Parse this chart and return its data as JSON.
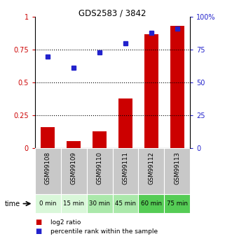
{
  "title": "GDS2583 / 3842",
  "samples": [
    "GSM99108",
    "GSM99109",
    "GSM99110",
    "GSM99111",
    "GSM99112",
    "GSM99113"
  ],
  "time_labels": [
    "0 min",
    "15 min",
    "30 min",
    "45 min",
    "60 min",
    "75 min"
  ],
  "log2_ratio": [
    0.16,
    0.055,
    0.13,
    0.38,
    0.87,
    0.93
  ],
  "percentile_rank": [
    70,
    61,
    73,
    80,
    88,
    91
  ],
  "bar_color": "#cc0000",
  "dot_color": "#2222cc",
  "ylim_left": [
    0,
    1.0
  ],
  "ylim_right": [
    0,
    100
  ],
  "yticks_left": [
    0,
    0.25,
    0.5,
    0.75,
    1.0
  ],
  "yticks_right": [
    0,
    25,
    50,
    75,
    100
  ],
  "ytick_labels_left": [
    "0",
    "0.25",
    "0.5",
    "0.75",
    "1"
  ],
  "ytick_labels_right": [
    "0",
    "25",
    "50",
    "75",
    "100%"
  ],
  "dotted_lines": [
    0.25,
    0.5,
    0.75
  ],
  "time_bg_colors": [
    "#d9f7d9",
    "#d9f7d9",
    "#aae8aa",
    "#aae8aa",
    "#55cc55",
    "#55cc55"
  ],
  "sample_bg_color": "#c8c8c8",
  "legend_bar_label": "log2 ratio",
  "legend_dot_label": "percentile rank within the sample"
}
